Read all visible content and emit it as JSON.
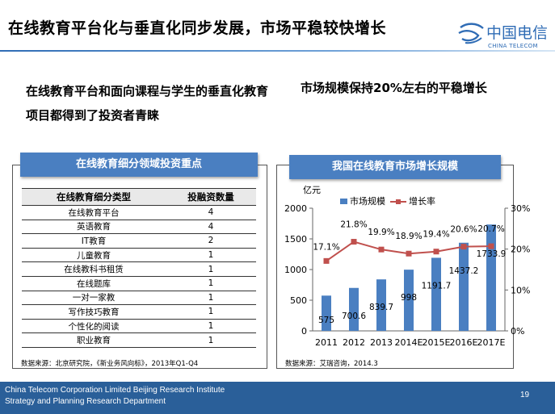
{
  "title": "在线教育平台化与垂直化同步发展，市场平稳较快增长",
  "logo": {
    "cn": "中国电信",
    "en": "CHINA TELECOM"
  },
  "left_heading": "在线教育平台和面向课程与学生的垂直化教育项目都得到了投资者青睐",
  "right_heading": "市场规模保持20%左右的平稳增长",
  "investment_table": {
    "banner": "在线教育细分领域投资重点",
    "headers": [
      "在线教育细分类型",
      "投融资数量"
    ],
    "rows": [
      [
        "在线教育平台",
        "4"
      ],
      [
        "英语教育",
        "4"
      ],
      [
        "IT教育",
        "2"
      ],
      [
        "儿童教育",
        "1"
      ],
      [
        "在线教科书租赁",
        "1"
      ],
      [
        "在线题库",
        "1"
      ],
      [
        "一对一家教",
        "1"
      ],
      [
        "写作技巧教育",
        "1"
      ],
      [
        "个性化的阅读",
        "1"
      ],
      [
        "职业教育",
        "1"
      ]
    ],
    "source": "数据来源：北京研究院，《新业务风向标》，2013年Q1-Q4"
  },
  "chart_banner": "我国在线教育市场增长规模",
  "chart_source": "数据来源：艾瑞咨询，2014.3",
  "chart_data": {
    "type": "bar",
    "categories": [
      "2011",
      "2012",
      "2013",
      "2014E",
      "2015E",
      "2016E",
      "2017E"
    ],
    "series": [
      {
        "name": "市场规模",
        "type": "bar",
        "axis": "left",
        "values": [
          575,
          700.6,
          839.7,
          998,
          1191.7,
          1437.2,
          1733.9
        ],
        "labels": [
          "575",
          "700.6",
          "839.7",
          "998",
          "1191.7",
          "1437.2",
          "1733.9"
        ],
        "color": "#4a7fc1"
      },
      {
        "name": "增长率",
        "type": "line",
        "axis": "right",
        "values": [
          17.1,
          21.8,
          19.9,
          18.9,
          19.4,
          20.6,
          20.7
        ],
        "labels": [
          "17.1%",
          "21.8%",
          "19.9%",
          "18.9%",
          "19.4%",
          "20.6%",
          "20.7%"
        ],
        "color": "#c0504d"
      }
    ],
    "y_left_label": "亿元",
    "y_left_ticks": [
      "0",
      "500",
      "1000",
      "1500",
      "2000"
    ],
    "y_left_range": [
      0,
      2000
    ],
    "y_right_ticks": [
      "0%",
      "10%",
      "20%",
      "30%"
    ],
    "y_right_range": [
      0,
      30
    ],
    "legend_position": "top"
  },
  "footer": {
    "line1": "China Telecom Corporation Limited Beijing Research Institute",
    "line2": "Strategy and Planning Research Department",
    "page": "19"
  }
}
